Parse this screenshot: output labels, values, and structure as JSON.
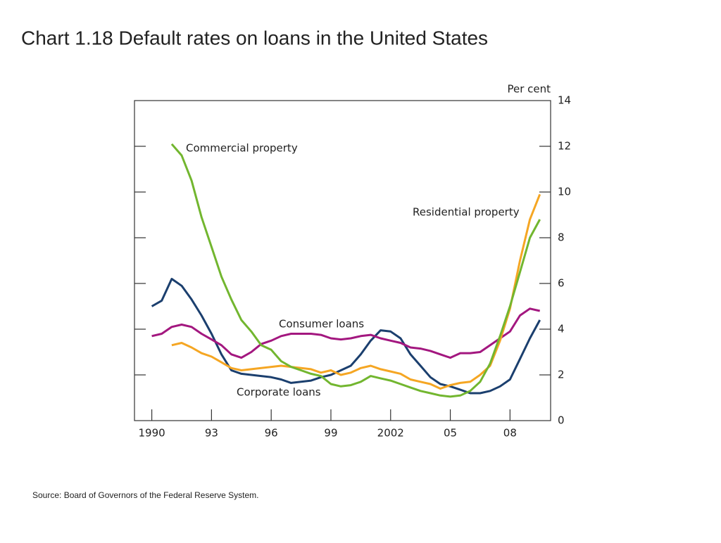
{
  "chart_data": {
    "type": "line",
    "title": "Chart 1.18  Default rates on loans in the United States",
    "y_label": "Per cent",
    "source": "Source:  Board of Governors of the Federal Reserve System.",
    "x": [
      1990,
      1990.5,
      1991,
      1991.5,
      1992,
      1992.5,
      1993,
      1993.5,
      1994,
      1994.5,
      1995,
      1995.5,
      1996,
      1996.5,
      1997,
      1997.5,
      1998,
      1998.5,
      1999,
      1999.5,
      2000,
      2000.5,
      2001,
      2001.5,
      2002,
      2002.5,
      2003,
      2003.5,
      2004,
      2004.5,
      2005,
      2005.5,
      2006,
      2006.5,
      2007,
      2007.5,
      2008,
      2008.5,
      2009,
      2009.5
    ],
    "series": [
      {
        "name": "Corporate loans",
        "color": "#1b3f6e",
        "values": [
          5.0,
          5.25,
          6.2,
          5.9,
          5.3,
          4.6,
          3.8,
          2.9,
          2.2,
          2.05,
          2.0,
          1.95,
          1.9,
          1.8,
          1.65,
          1.7,
          1.75,
          1.9,
          2.0,
          2.2,
          2.4,
          2.9,
          3.5,
          3.95,
          3.9,
          3.6,
          2.9,
          2.4,
          1.9,
          1.6,
          1.5,
          1.35,
          1.2,
          1.2,
          1.3,
          1.5,
          1.8,
          2.7,
          3.6,
          4.4
        ]
      },
      {
        "name": "Consumer loans",
        "color": "#a3177f",
        "values": [
          3.7,
          3.8,
          4.1,
          4.2,
          4.1,
          3.8,
          3.55,
          3.3,
          2.9,
          2.75,
          3.0,
          3.35,
          3.5,
          3.7,
          3.8,
          3.8,
          3.8,
          3.75,
          3.6,
          3.55,
          3.6,
          3.7,
          3.75,
          3.6,
          3.5,
          3.4,
          3.2,
          3.15,
          3.05,
          2.9,
          2.75,
          2.95,
          2.95,
          3.0,
          3.3,
          3.6,
          3.9,
          4.6,
          4.9,
          4.8
        ]
      },
      {
        "name": "Residential property",
        "color": "#f5a623",
        "values": [
          null,
          null,
          3.3,
          3.4,
          3.2,
          2.95,
          2.8,
          2.55,
          2.3,
          2.2,
          2.25,
          2.3,
          2.35,
          2.4,
          2.35,
          2.3,
          2.25,
          2.1,
          2.2,
          2.0,
          2.1,
          2.3,
          2.4,
          2.25,
          2.15,
          2.05,
          1.8,
          1.7,
          1.6,
          1.4,
          1.55,
          1.65,
          1.7,
          2.0,
          2.4,
          3.5,
          4.9,
          7.0,
          8.8,
          9.9
        ]
      },
      {
        "name": "Commercial property",
        "color": "#72b62f",
        "values": [
          null,
          null,
          12.1,
          11.6,
          10.5,
          8.9,
          7.6,
          6.3,
          5.3,
          4.4,
          3.9,
          3.3,
          3.1,
          2.6,
          2.35,
          2.2,
          2.05,
          1.95,
          1.6,
          1.5,
          1.55,
          1.7,
          1.95,
          1.85,
          1.75,
          1.6,
          1.45,
          1.3,
          1.2,
          1.1,
          1.05,
          1.1,
          1.3,
          1.7,
          2.5,
          3.7,
          5.0,
          6.5,
          8.0,
          8.8
        ]
      }
    ],
    "xlim": [
      1989.13,
      2010.04
    ],
    "xticks": [
      {
        "value": 1990,
        "label": "1990"
      },
      {
        "value": 1993,
        "label": "93"
      },
      {
        "value": 1996,
        "label": "96"
      },
      {
        "value": 1999,
        "label": "99"
      },
      {
        "value": 2002,
        "label": "2002"
      },
      {
        "value": 2005,
        "label": "05"
      },
      {
        "value": 2008,
        "label": "08"
      }
    ],
    "ylim": [
      0,
      14
    ],
    "yticks": [
      0,
      2,
      4,
      6,
      8,
      10,
      12,
      14
    ]
  }
}
